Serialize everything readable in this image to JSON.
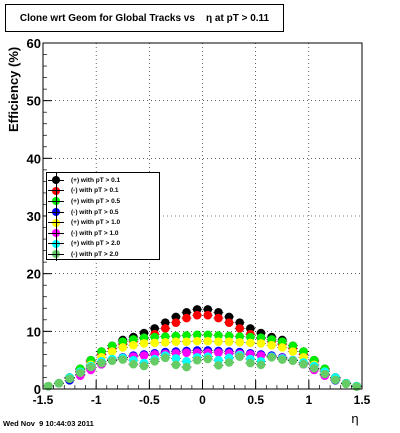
{
  "title": "Clone wrt Geom for Global Tracks vs    η at pT > 0.11",
  "timestamp": "Wed Nov  9 10:44:03 2011",
  "chart_data": {
    "type": "scatter",
    "xlabel": "η",
    "ylabel": "Efficiency (%)",
    "xlim": [
      -1.5,
      1.5
    ],
    "ylim": [
      0,
      60
    ],
    "x_ticks": [
      -1.5,
      -1,
      -0.5,
      0,
      0.5,
      1,
      1.5
    ],
    "x_tick_labels": [
      "-1.5",
      "-1",
      "-0.5",
      "0",
      "0.5",
      "1",
      "1.5"
    ],
    "y_ticks": [
      0,
      10,
      20,
      30,
      40,
      50,
      60
    ],
    "y_tick_labels": [
      "0",
      "10",
      "20",
      "30",
      "40",
      "50",
      "60"
    ],
    "grid": true,
    "legend_placement": "left-middle",
    "series": [
      {
        "name": "(+) with pT > 0.1",
        "color": "#000000",
        "x": [
          -1.45,
          -1.35,
          -1.25,
          -1.15,
          -1.05,
          -0.95,
          -0.85,
          -0.75,
          -0.65,
          -0.55,
          -0.45,
          -0.35,
          -0.25,
          -0.15,
          -0.05,
          0.05,
          0.15,
          0.25,
          0.35,
          0.45,
          0.55,
          0.65,
          0.75,
          0.85,
          0.95,
          1.05,
          1.15,
          1.25,
          1.35,
          1.45
        ],
        "y": [
          0.5,
          1.0,
          2.0,
          3.5,
          5.0,
          6.5,
          7.5,
          8.5,
          9.0,
          9.7,
          10.5,
          11.5,
          12.5,
          13.3,
          13.8,
          13.8,
          13.3,
          12.5,
          11.5,
          10.5,
          9.7,
          9.0,
          8.5,
          7.5,
          6.5,
          5.0,
          3.5,
          2.0,
          1.0,
          0.5
        ]
      },
      {
        "name": "(-) with pT > 0.1",
        "color": "#ff0000",
        "x": [
          -1.45,
          -1.35,
          -1.25,
          -1.15,
          -1.05,
          -0.95,
          -0.85,
          -0.75,
          -0.65,
          -0.55,
          -0.45,
          -0.35,
          -0.25,
          -0.15,
          -0.05,
          0.05,
          0.15,
          0.25,
          0.35,
          0.45,
          0.55,
          0.65,
          0.75,
          0.85,
          0.95,
          1.05,
          1.15,
          1.25,
          1.35,
          1.45
        ],
        "y": [
          0.5,
          1.0,
          2.0,
          3.3,
          4.7,
          6.0,
          7.0,
          7.8,
          8.3,
          8.8,
          9.5,
          10.5,
          11.5,
          12.3,
          12.8,
          12.8,
          12.3,
          11.5,
          10.5,
          9.5,
          8.8,
          8.3,
          7.8,
          7.0,
          6.0,
          4.7,
          3.3,
          2.0,
          1.0,
          0.5
        ]
      },
      {
        "name": "(+) with pT > 0.5",
        "color": "#00ee00",
        "x": [
          -1.45,
          -1.35,
          -1.25,
          -1.15,
          -1.05,
          -0.95,
          -0.85,
          -0.75,
          -0.65,
          -0.55,
          -0.45,
          -0.35,
          -0.25,
          -0.15,
          -0.05,
          0.05,
          0.15,
          0.25,
          0.35,
          0.45,
          0.55,
          0.65,
          0.75,
          0.85,
          0.95,
          1.05,
          1.15,
          1.25,
          1.35,
          1.45
        ],
        "y": [
          0.5,
          1.0,
          2.0,
          3.5,
          5.0,
          6.5,
          7.5,
          8.2,
          8.6,
          8.9,
          9.0,
          9.1,
          9.2,
          9.3,
          9.4,
          9.4,
          9.3,
          9.2,
          9.1,
          9.0,
          8.9,
          8.6,
          8.2,
          7.5,
          6.5,
          5.0,
          3.5,
          2.0,
          1.0,
          0.5
        ]
      },
      {
        "name": "(-) with pT > 0.5",
        "color": "#0000ff",
        "x": [
          -1.25,
          -1.15,
          -1.05,
          -0.95,
          -0.85,
          -0.75,
          -0.65,
          -0.55,
          -0.45,
          -0.35,
          -0.25,
          -0.15,
          -0.05,
          0.05,
          0.15,
          0.25,
          0.35,
          0.45,
          0.55,
          0.65,
          0.75,
          0.85,
          0.95,
          1.05,
          1.15,
          1.25
        ],
        "y": [
          1.5,
          2.5,
          3.5,
          4.3,
          5.0,
          5.5,
          5.8,
          6.0,
          6.2,
          6.4,
          6.5,
          6.6,
          6.7,
          6.7,
          6.6,
          6.5,
          6.4,
          6.2,
          6.0,
          5.8,
          5.5,
          5.0,
          4.3,
          3.5,
          2.5,
          1.5
        ]
      },
      {
        "name": "(+) with pT > 1.0",
        "color": "#ffff00",
        "x": [
          -1.25,
          -1.15,
          -1.05,
          -0.95,
          -0.85,
          -0.75,
          -0.65,
          -0.55,
          -0.45,
          -0.35,
          -0.25,
          -0.15,
          -0.05,
          0.05,
          0.15,
          0.25,
          0.35,
          0.45,
          0.55,
          0.65,
          0.75,
          0.85,
          0.95,
          1.05,
          1.15,
          1.25
        ],
        "y": [
          1.8,
          3.0,
          4.2,
          5.5,
          6.5,
          7.2,
          7.6,
          7.9,
          8.0,
          8.1,
          8.2,
          8.2,
          8.3,
          8.3,
          8.2,
          8.2,
          8.1,
          8.0,
          7.9,
          7.6,
          7.2,
          6.5,
          5.5,
          4.2,
          3.0,
          1.8
        ]
      },
      {
        "name": "(-) with pT > 1.0",
        "color": "#ff00ff",
        "x": [
          -1.15,
          -1.05,
          -0.95,
          -0.85,
          -0.75,
          -0.65,
          -0.55,
          -0.45,
          -0.35,
          -0.25,
          -0.15,
          -0.05,
          0.05,
          0.15,
          0.25,
          0.35,
          0.45,
          0.55,
          0.65,
          0.75,
          0.85,
          0.95,
          1.05,
          1.15
        ],
        "y": [
          2.3,
          3.3,
          4.3,
          5.0,
          5.4,
          5.6,
          5.8,
          6.0,
          6.1,
          6.2,
          6.3,
          6.3,
          6.3,
          6.3,
          6.2,
          6.1,
          6.0,
          5.8,
          5.6,
          5.4,
          5.0,
          4.3,
          3.3,
          2.3
        ]
      },
      {
        "name": "(+) with pT > 2.0",
        "color": "#00ffff",
        "x": [
          -1.45,
          -1.35,
          -1.25,
          -1.15,
          -1.05,
          -0.95,
          -0.85,
          -0.75,
          -0.65,
          -0.55,
          -0.45,
          -0.35,
          -0.25,
          -0.15,
          -0.05,
          0.05,
          0.15,
          0.25,
          0.35,
          0.45,
          0.55,
          0.65,
          0.75,
          0.85,
          0.95,
          1.05,
          1.15,
          1.25,
          1.35,
          1.45
        ],
        "y": [
          0.5,
          1.0,
          2.0,
          3.0,
          4.0,
          4.8,
          5.2,
          5.4,
          5.0,
          4.5,
          5.2,
          5.8,
          5.3,
          4.8,
          5.5,
          5.6,
          5.0,
          5.4,
          5.9,
          5.2,
          4.8,
          5.6,
          5.3,
          5.0,
          4.6,
          4.0,
          3.0,
          2.0,
          1.0,
          0.5
        ]
      },
      {
        "name": "(-) with pT > 2.0",
        "color": "#66cc66",
        "x": [
          -1.45,
          -1.35,
          -1.25,
          -1.15,
          -1.05,
          -0.95,
          -0.85,
          -0.75,
          -0.65,
          -0.55,
          -0.45,
          -0.35,
          -0.25,
          -0.15,
          -0.05,
          0.05,
          0.15,
          0.25,
          0.35,
          0.45,
          0.55,
          0.65,
          0.75,
          0.85,
          0.95,
          1.05,
          1.15,
          1.25,
          1.35,
          1.45
        ],
        "y": [
          0.5,
          1.0,
          1.8,
          2.8,
          3.8,
          4.5,
          4.9,
          5.1,
          4.3,
          4.0,
          4.8,
          5.4,
          4.2,
          3.8,
          5.0,
          5.2,
          4.1,
          4.6,
          5.6,
          4.5,
          4.2,
          5.5,
          5.1,
          4.9,
          4.3,
          3.6,
          2.6,
          1.6,
          0.9,
          0.4
        ]
      }
    ]
  }
}
